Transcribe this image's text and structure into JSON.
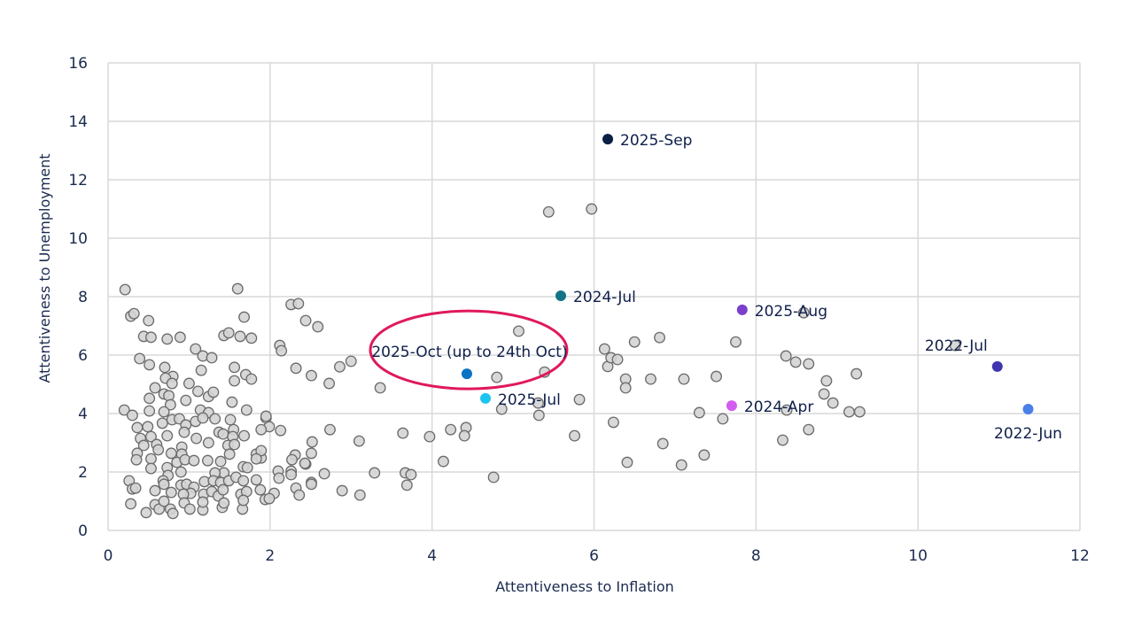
{
  "chart_data": {
    "type": "scatter",
    "title": "",
    "xlabel": "Attentiveness to Inflation",
    "ylabel": "Attentiveness to Unemployment",
    "xlim": [
      0,
      12
    ],
    "ylim": [
      0,
      16
    ],
    "xticks": [
      0,
      2,
      4,
      6,
      8,
      10,
      12
    ],
    "yticks": [
      0,
      2,
      4,
      6,
      8,
      10,
      12,
      14,
      16
    ],
    "grid": true,
    "legend": "none",
    "colors": {
      "grey_fill": "#d4d4d4",
      "grey_stroke": "#6b6b6b",
      "grid": "#d9d9d9",
      "highlight_ring": "#e0195a",
      "label_text": "#0f1f4b"
    },
    "highlighted": [
      {
        "label": "2025-Sep",
        "x": 6.17,
        "y": 13.39,
        "color": "#0b1f45"
      },
      {
        "label": "2024-Jul",
        "x": 5.59,
        "y": 8.03,
        "color": "#137385"
      },
      {
        "label": "2025-Aug",
        "x": 7.83,
        "y": 7.55,
        "color": "#7a3fcc"
      },
      {
        "label": "2022-Jul",
        "x": 10.98,
        "y": 5.61,
        "color": "#3f35b0"
      },
      {
        "label": "2022-Jun",
        "x": 11.36,
        "y": 4.15,
        "color": "#4a80e8"
      },
      {
        "label": "2025-Oct (up to 24th Oct)",
        "x": 4.43,
        "y": 5.36,
        "color": "#0a73c4",
        "circled": true
      },
      {
        "label": "2025-Jul",
        "x": 4.66,
        "y": 4.52,
        "color": "#1cc4f0"
      },
      {
        "label": "2024-Apr",
        "x": 7.7,
        "y": 4.27,
        "color": "#d25cf0"
      }
    ],
    "points": [
      [
        0.44,
        6.64
      ],
      [
        0.53,
        6.61
      ],
      [
        0.73,
        6.55
      ],
      [
        0.89,
        6.61
      ],
      [
        1.08,
        6.21
      ],
      [
        1.17,
        5.97
      ],
      [
        1.28,
        5.91
      ],
      [
        0.39,
        5.88
      ],
      [
        0.51,
        5.67
      ],
      [
        0.7,
        5.58
      ],
      [
        1.15,
        5.48
      ],
      [
        0.8,
        5.27
      ],
      [
        0.71,
        5.21
      ],
      [
        0.79,
        5.03
      ],
      [
        1.0,
        5.03
      ],
      [
        1.56,
        5.58
      ],
      [
        1.7,
        5.33
      ],
      [
        1.77,
        5.18
      ],
      [
        1.56,
        5.12
      ],
      [
        0.58,
        4.88
      ],
      [
        0.51,
        4.52
      ],
      [
        0.69,
        4.67
      ],
      [
        0.75,
        4.61
      ],
      [
        0.77,
        4.3
      ],
      [
        0.96,
        4.45
      ],
      [
        1.11,
        4.76
      ],
      [
        1.24,
        4.58
      ],
      [
        1.3,
        4.73
      ],
      [
        1.53,
        4.39
      ],
      [
        1.71,
        4.12
      ],
      [
        0.2,
        4.12
      ],
      [
        0.3,
        3.94
      ],
      [
        0.51,
        4.09
      ],
      [
        0.69,
        4.06
      ],
      [
        1.14,
        4.12
      ],
      [
        1.24,
        4.03
      ],
      [
        1.32,
        3.82
      ],
      [
        0.36,
        3.52
      ],
      [
        0.49,
        3.55
      ],
      [
        0.67,
        3.67
      ],
      [
        0.79,
        3.79
      ],
      [
        0.88,
        3.82
      ],
      [
        0.96,
        3.61
      ],
      [
        1.08,
        3.73
      ],
      [
        1.17,
        3.85
      ],
      [
        1.51,
        3.79
      ],
      [
        1.95,
        3.85
      ],
      [
        1.99,
        3.55
      ],
      [
        2.13,
        3.42
      ],
      [
        1.89,
        3.45
      ],
      [
        0.4,
        3.15
      ],
      [
        0.53,
        3.21
      ],
      [
        0.73,
        3.24
      ],
      [
        0.94,
        3.36
      ],
      [
        1.09,
        3.15
      ],
      [
        1.24,
        3.0
      ],
      [
        1.37,
        3.36
      ],
      [
        1.42,
        3.3
      ],
      [
        1.55,
        3.45
      ],
      [
        1.54,
        3.21
      ],
      [
        1.68,
        3.24
      ],
      [
        0.44,
        2.91
      ],
      [
        0.6,
        2.94
      ],
      [
        0.91,
        2.85
      ],
      [
        1.48,
        2.91
      ],
      [
        1.56,
        2.94
      ],
      [
        0.36,
        2.64
      ],
      [
        0.35,
        2.42
      ],
      [
        0.53,
        2.45
      ],
      [
        0.62,
        2.76
      ],
      [
        0.78,
        2.64
      ],
      [
        0.91,
        2.61
      ],
      [
        0.85,
        2.33
      ],
      [
        0.95,
        2.42
      ],
      [
        1.06,
        2.39
      ],
      [
        1.23,
        2.39
      ],
      [
        1.39,
        2.36
      ],
      [
        1.5,
        2.61
      ],
      [
        1.83,
        2.61
      ],
      [
        1.89,
        2.48
      ],
      [
        1.89,
        2.73
      ],
      [
        0.53,
        2.12
      ],
      [
        0.73,
        2.15
      ],
      [
        0.74,
        1.88
      ],
      [
        0.9,
        2.0
      ],
      [
        1.43,
        1.97
      ],
      [
        1.67,
        2.18
      ],
      [
        1.72,
        2.15
      ],
      [
        1.32,
        1.97
      ],
      [
        0.26,
        1.7
      ],
      [
        0.3,
        1.42
      ],
      [
        0.34,
        1.45
      ],
      [
        0.58,
        1.36
      ],
      [
        0.68,
        1.7
      ],
      [
        0.69,
        1.58
      ],
      [
        0.78,
        1.3
      ],
      [
        0.9,
        1.55
      ],
      [
        0.97,
        1.58
      ],
      [
        1.06,
        1.48
      ],
      [
        1.02,
        1.27
      ],
      [
        0.93,
        1.24
      ],
      [
        1.19,
        1.67
      ],
      [
        1.3,
        1.7
      ],
      [
        1.39,
        1.64
      ],
      [
        1.49,
        1.7
      ],
      [
        1.58,
        1.82
      ],
      [
        1.67,
        1.7
      ],
      [
        1.18,
        1.24
      ],
      [
        1.28,
        1.33
      ],
      [
        1.36,
        1.18
      ],
      [
        1.42,
        1.39
      ],
      [
        1.64,
        1.24
      ],
      [
        1.71,
        1.33
      ],
      [
        1.83,
        1.73
      ],
      [
        1.88,
        1.39
      ],
      [
        1.94,
        1.06
      ],
      [
        2.05,
        1.27
      ],
      [
        1.99,
        1.09
      ],
      [
        0.28,
        0.91
      ],
      [
        0.47,
        0.61
      ],
      [
        0.58,
        0.88
      ],
      [
        0.63,
        0.73
      ],
      [
        0.69,
        1.0
      ],
      [
        0.77,
        0.73
      ],
      [
        0.8,
        0.58
      ],
      [
        0.94,
        0.94
      ],
      [
        1.01,
        0.73
      ],
      [
        1.17,
        0.7
      ],
      [
        1.17,
        0.97
      ],
      [
        1.41,
        0.79
      ],
      [
        1.43,
        0.94
      ],
      [
        1.66,
        0.73
      ],
      [
        1.67,
        1.03
      ],
      [
        2.1,
        2.03
      ],
      [
        2.11,
        1.79
      ],
      [
        2.26,
        2.03
      ],
      [
        2.26,
        1.91
      ],
      [
        2.32,
        1.45
      ],
      [
        2.36,
        1.21
      ],
      [
        2.51,
        1.64
      ],
      [
        2.52,
        3.03
      ],
      [
        2.51,
        2.64
      ],
      [
        2.44,
        2.27
      ],
      [
        2.26,
        7.73
      ],
      [
        2.35,
        7.76
      ],
      [
        2.44,
        7.18
      ],
      [
        2.59,
        6.97
      ],
      [
        2.12,
        6.33
      ],
      [
        2.14,
        6.15
      ],
      [
        2.32,
        5.55
      ],
      [
        2.51,
        5.3
      ],
      [
        0.21,
        8.24
      ],
      [
        1.6,
        8.27
      ],
      [
        0.28,
        7.33
      ],
      [
        0.32,
        7.42
      ],
      [
        0.5,
        7.18
      ],
      [
        1.68,
        7.3
      ],
      [
        1.43,
        6.67
      ],
      [
        1.49,
        6.76
      ],
      [
        1.63,
        6.64
      ],
      [
        1.77,
        6.58
      ],
      [
        5.07,
        6.82
      ],
      [
        2.73,
        5.03
      ],
      [
        2.86,
        5.6
      ],
      [
        3.0,
        5.79
      ],
      [
        3.36,
        4.88
      ],
      [
        4.8,
        5.24
      ],
      [
        5.39,
        5.42
      ],
      [
        6.13,
        6.21
      ],
      [
        6.17,
        5.61
      ],
      [
        6.21,
        5.91
      ],
      [
        6.29,
        5.85
      ],
      [
        6.39,
        5.18
      ],
      [
        6.39,
        4.88
      ],
      [
        6.5,
        6.45
      ],
      [
        6.81,
        6.6
      ],
      [
        6.7,
        5.18
      ],
      [
        7.11,
        5.18
      ],
      [
        7.51,
        5.27
      ],
      [
        7.75,
        6.45
      ],
      [
        8.37,
        5.97
      ],
      [
        8.49,
        5.76
      ],
      [
        8.65,
        5.7
      ],
      [
        8.59,
        7.45
      ],
      [
        8.87,
        5.12
      ],
      [
        8.84,
        4.67
      ],
      [
        8.95,
        4.36
      ],
      [
        9.24,
        5.36
      ],
      [
        9.15,
        4.06
      ],
      [
        9.28,
        4.06
      ],
      [
        10.46,
        6.33
      ],
      [
        5.31,
        4.36
      ],
      [
        5.32,
        3.94
      ],
      [
        4.86,
        4.15
      ],
      [
        5.82,
        4.48
      ],
      [
        5.76,
        3.24
      ],
      [
        6.24,
        3.7
      ],
      [
        6.41,
        2.33
      ],
      [
        6.85,
        2.97
      ],
      [
        7.08,
        2.24
      ],
      [
        7.36,
        2.58
      ],
      [
        7.3,
        4.03
      ],
      [
        7.59,
        3.82
      ],
      [
        8.38,
        4.12
      ],
      [
        8.33,
        3.09
      ],
      [
        8.65,
        3.45
      ],
      [
        3.64,
        3.33
      ],
      [
        3.97,
        3.21
      ],
      [
        4.23,
        3.45
      ],
      [
        4.42,
        3.52
      ],
      [
        4.4,
        3.24
      ],
      [
        4.14,
        2.36
      ],
      [
        4.76,
        1.82
      ],
      [
        3.67,
        1.97
      ],
      [
        3.69,
        1.55
      ],
      [
        3.74,
        1.91
      ],
      [
        3.29,
        1.97
      ],
      [
        3.1,
        3.06
      ],
      [
        3.11,
        1.21
      ],
      [
        2.89,
        1.36
      ],
      [
        2.74,
        3.45
      ],
      [
        2.51,
        1.58
      ],
      [
        2.43,
        2.3
      ],
      [
        2.31,
        2.58
      ],
      [
        2.27,
        2.42
      ],
      [
        2.67,
        1.94
      ],
      [
        1.95,
        3.91
      ],
      [
        1.83,
        2.45
      ],
      [
        5.44,
        10.9
      ],
      [
        5.97,
        11.0
      ]
    ]
  }
}
